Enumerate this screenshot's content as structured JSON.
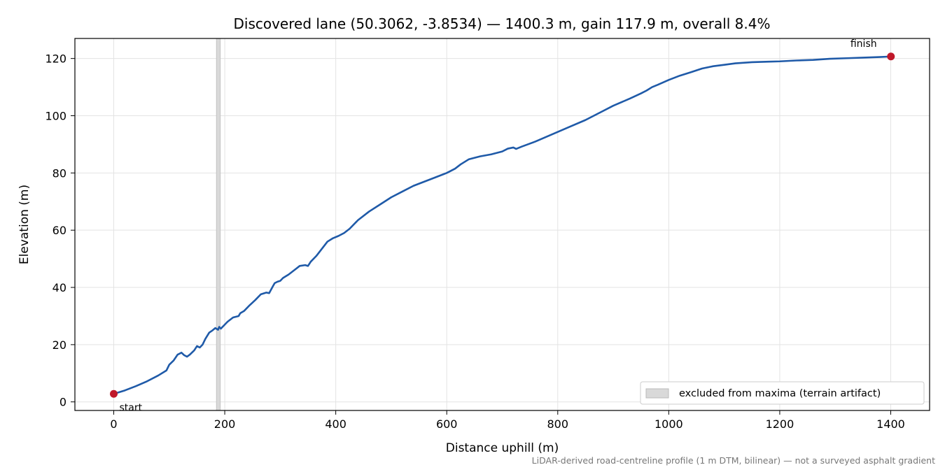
{
  "chart_data": {
    "type": "line",
    "title": "Discovered lane (50.3062, -3.8534) — 1400.3 m, gain 117.9 m, overall 8.4%",
    "xlabel": "Distance uphill (m)",
    "ylabel": "Elevation (m)",
    "xlim": [
      -70,
      1470
    ],
    "ylim": [
      -3,
      127
    ],
    "xticks": [
      0,
      200,
      400,
      600,
      800,
      1000,
      1200,
      1400
    ],
    "yticks": [
      0,
      20,
      40,
      60,
      80,
      100,
      120
    ],
    "grid": true,
    "line_color": "#1f5aa8",
    "marker_color": "#c0182a",
    "excluded_color": "#d9d9d9",
    "series": [
      {
        "values_x": [
          0,
          20,
          40,
          60,
          80,
          95,
          100,
          108,
          115,
          122,
          127,
          132,
          137,
          145,
          150,
          155,
          160,
          165,
          172,
          178,
          183,
          188,
          190,
          193,
          198,
          205,
          215,
          225,
          228,
          235,
          245,
          255,
          265,
          275,
          280,
          287,
          290,
          295,
          300,
          305,
          315,
          325,
          335,
          345,
          350,
          355,
          365,
          375,
          385,
          395,
          405,
          415,
          425,
          440,
          460,
          480,
          500,
          520,
          540,
          560,
          580,
          600,
          605,
          615,
          625,
          640,
          660,
          680,
          700,
          710,
          720,
          725,
          735,
          760,
          790,
          820,
          850,
          880,
          900,
          930,
          950,
          960,
          970,
          980,
          1000,
          1020,
          1040,
          1060,
          1080,
          1100,
          1120,
          1150,
          1180,
          1200,
          1230,
          1260,
          1290,
          1320,
          1350,
          1380,
          1400.3
        ],
        "values_y": [
          2.8,
          4.0,
          5.5,
          7.2,
          9.2,
          11.0,
          13.0,
          14.5,
          16.5,
          17.2,
          16.3,
          15.8,
          16.5,
          18.0,
          19.5,
          19.0,
          20.0,
          22.0,
          24.2,
          25.0,
          25.8,
          25.2,
          26.2,
          25.6,
          26.6,
          28.0,
          29.5,
          30.0,
          31.0,
          31.8,
          33.8,
          35.6,
          37.6,
          38.2,
          38.0,
          40.5,
          41.5,
          42.0,
          42.3,
          43.3,
          44.5,
          46.0,
          47.5,
          47.8,
          47.5,
          49.0,
          51.0,
          53.5,
          56.0,
          57.2,
          58.0,
          59.0,
          60.5,
          63.5,
          66.5,
          69.0,
          71.5,
          73.5,
          75.5,
          77.0,
          78.5,
          80.0,
          80.5,
          81.5,
          83.0,
          84.8,
          85.8,
          86.5,
          87.5,
          88.5,
          88.9,
          88.4,
          89.2,
          91.0,
          93.5,
          96.0,
          98.5,
          101.5,
          103.5,
          106.0,
          107.8,
          108.8,
          110.0,
          110.8,
          112.5,
          114.0,
          115.2,
          116.5,
          117.3,
          117.8,
          118.3,
          118.7,
          118.9,
          119.0,
          119.3,
          119.5,
          119.9,
          120.1,
          120.3,
          120.5,
          120.7
        ]
      }
    ],
    "excluded_region": {
      "x_start": 185,
      "x_end": 192
    },
    "legend": {
      "label": "excluded from maxima (terrain artifact)",
      "location": "lower-right"
    },
    "annotations": {
      "start": {
        "label": "start",
        "x": 0,
        "y": 2.8
      },
      "finish": {
        "label": "finish",
        "x": 1400.3,
        "y": 120.7
      }
    },
    "footnote": "LiDAR-derived road-centreline profile (1 m DTM, bilinear) — not a surveyed asphalt gradient"
  }
}
